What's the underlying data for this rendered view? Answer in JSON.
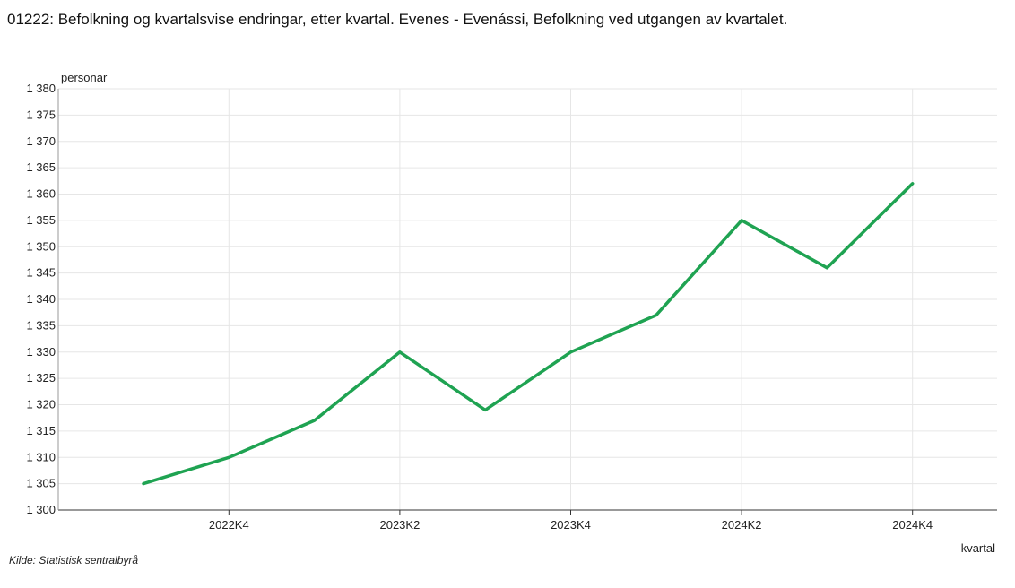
{
  "header": {
    "title": "01222: Befolkning og kvartalsvise endringar, etter kvartal. Evenes - Evenássi, Befolkning ved utgangen av kvartalet."
  },
  "footer": {
    "source": "Kilde:  Statistisk sentralbyrå"
  },
  "chart_data": {
    "type": "line",
    "title": "01222: Befolkning og kvartalsvise endringar, etter kvartal. Evenes - Evenássi, Befolkning ved utgangen av kvartalet.",
    "xlabel": "kvartal",
    "ylabel": "personar",
    "categories": [
      "2022K3",
      "2022K4",
      "2023K1",
      "2023K2",
      "2023K3",
      "2023K4",
      "2024K1",
      "2024K2",
      "2024K3",
      "2024K4"
    ],
    "x_tick_labels": [
      "2022K4",
      "2023K2",
      "2023K4",
      "2024K2",
      "2024K4"
    ],
    "series": [
      {
        "values": [
          1305,
          1310,
          1317,
          1330,
          1319,
          1330,
          1337,
          1355,
          1346,
          1362
        ]
      }
    ],
    "ylim": [
      1300,
      1380
    ],
    "y_ticks": [
      1300,
      1305,
      1310,
      1315,
      1320,
      1325,
      1330,
      1335,
      1340,
      1345,
      1350,
      1355,
      1360,
      1365,
      1370,
      1375,
      1380
    ],
    "y_tick_labels": [
      "1 300",
      "1 305",
      "1 310",
      "1 315",
      "1 320",
      "1 325",
      "1 330",
      "1 335",
      "1 340",
      "1 345",
      "1 350",
      "1 355",
      "1 360",
      "1 365",
      "1 370",
      "1 375",
      "1 380"
    ],
    "grid": true,
    "line_color": "#1fa352",
    "grid_color": "#e6e6e6"
  }
}
